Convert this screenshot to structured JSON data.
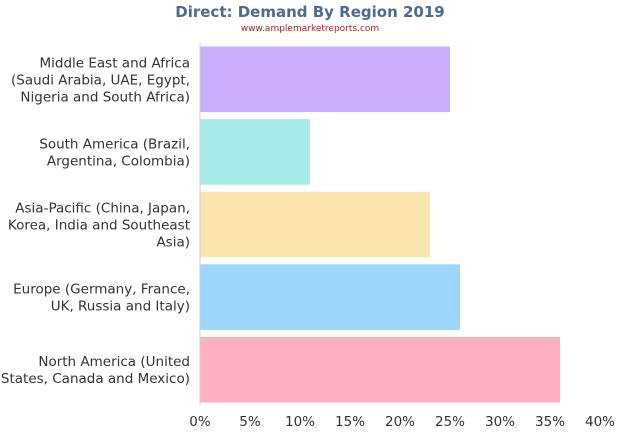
{
  "chart_data": {
    "type": "bar",
    "orientation": "horizontal",
    "title": "Direct: Demand By Region 2019",
    "subtitle": "www.amplemarketreports.com",
    "categories": [
      [
        "Middle East and Africa",
        "(Saudi Arabia, UAE, Egypt,",
        "Nigeria and South Africa)"
      ],
      [
        "South America (Brazil,",
        "Argentina, Colombia)"
      ],
      [
        "Asia-Pacific (China, Japan,",
        "Korea, India and Southeast",
        "Asia)"
      ],
      [
        "Europe (Germany, France,",
        "UK, Russia and Italy)"
      ],
      [
        "North America (United",
        "States, Canada and Mexico)"
      ]
    ],
    "values": [
      25,
      11,
      23,
      26,
      36
    ],
    "colors": [
      "#c9aefa",
      "#a7ebe9",
      "#fde6ae",
      "#9dd5fb",
      "#feb1c3"
    ],
    "xlim": [
      0,
      40
    ],
    "xticks": [
      "0%",
      "5%",
      "10%",
      "15%",
      "20%",
      "25%",
      "30%",
      "35%",
      "40%"
    ],
    "grid": false,
    "legend": "none"
  }
}
